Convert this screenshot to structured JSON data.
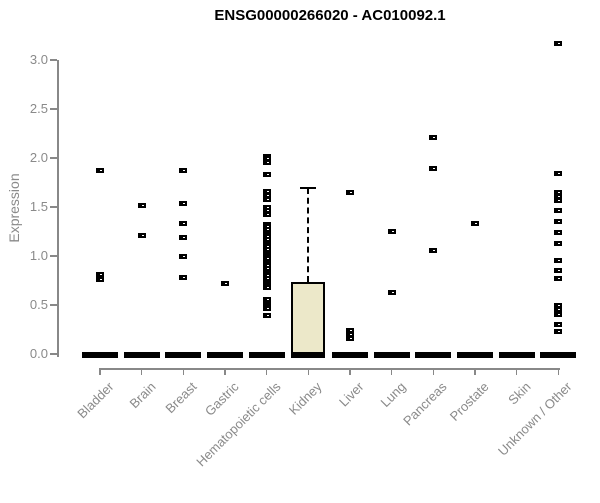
{
  "chart_data": {
    "type": "boxplot",
    "title": "ENSG00000266020 - AC010092.1",
    "ylabel": "Expression",
    "ylim": [
      0.0,
      3.0
    ],
    "yticks": [
      "0.0",
      "0.5",
      "1.0",
      "1.5",
      "2.0",
      "2.5",
      "3.0"
    ],
    "grid": false,
    "legend": "none",
    "categories": [
      "Bladder",
      "Brain",
      "Breast",
      "Gastric",
      "Hematopoietic cells",
      "Kidney",
      "Liver",
      "Lung",
      "Pancreas",
      "Prostate",
      "Skin",
      "Unknown / Other"
    ],
    "series": [
      {
        "category": "Bladder",
        "zero_bar": true,
        "points": [
          1.87,
          0.81,
          0.76
        ]
      },
      {
        "category": "Brain",
        "zero_bar": true,
        "points": [
          1.52,
          1.21
        ]
      },
      {
        "category": "Breast",
        "zero_bar": true,
        "points": [
          1.87,
          1.54,
          1.33,
          1.19,
          0.99,
          0.78
        ]
      },
      {
        "category": "Gastric",
        "zero_bar": true,
        "points": [
          0.72
        ]
      },
      {
        "category": "Hematopoietic cells",
        "zero_bar": true,
        "points": [
          2.02,
          1.99,
          1.95,
          1.83,
          1.66,
          1.62,
          1.58,
          1.5,
          1.46,
          1.42,
          1.32,
          1.3,
          1.27,
          1.24,
          1.22,
          1.2,
          1.17,
          1.14,
          1.12,
          1.1,
          1.07,
          1.04,
          1.02,
          1.0,
          0.97,
          0.94,
          0.92,
          0.9,
          0.87,
          0.84,
          0.82,
          0.8,
          0.77,
          0.74,
          0.72,
          0.7,
          0.68,
          0.56,
          0.51,
          0.48,
          0.46,
          0.39
        ]
      },
      {
        "category": "Kidney",
        "zero_bar": false,
        "points": [],
        "box": {
          "q1": 0.0,
          "median": 0.0,
          "q3": 0.73,
          "whisker_low": 0.0,
          "whisker_high": 1.69
        }
      },
      {
        "category": "Liver",
        "zero_bar": true,
        "points": [
          1.65,
          0.24,
          0.2,
          0.16
        ]
      },
      {
        "category": "Lung",
        "zero_bar": true,
        "points": [
          1.25,
          0.63
        ]
      },
      {
        "category": "Pancreas",
        "zero_bar": true,
        "points": [
          2.21,
          1.89,
          1.06
        ]
      },
      {
        "category": "Prostate",
        "zero_bar": true,
        "points": [
          1.33
        ]
      },
      {
        "category": "Skin",
        "zero_bar": true,
        "points": []
      },
      {
        "category": "Unknown / Other",
        "zero_bar": true,
        "points": [
          3.17,
          1.84,
          1.65,
          1.61,
          1.57,
          1.46,
          1.35,
          1.24,
          1.13,
          0.95,
          0.85,
          0.77,
          0.49,
          0.45,
          0.4,
          0.3,
          0.23
        ]
      }
    ],
    "colors": {
      "box_fill": "#ece8c9",
      "box_border": "#000000",
      "point": "#000000",
      "axis": "#888888",
      "tick_label": "#8a8a8a",
      "title": "#000000"
    }
  }
}
